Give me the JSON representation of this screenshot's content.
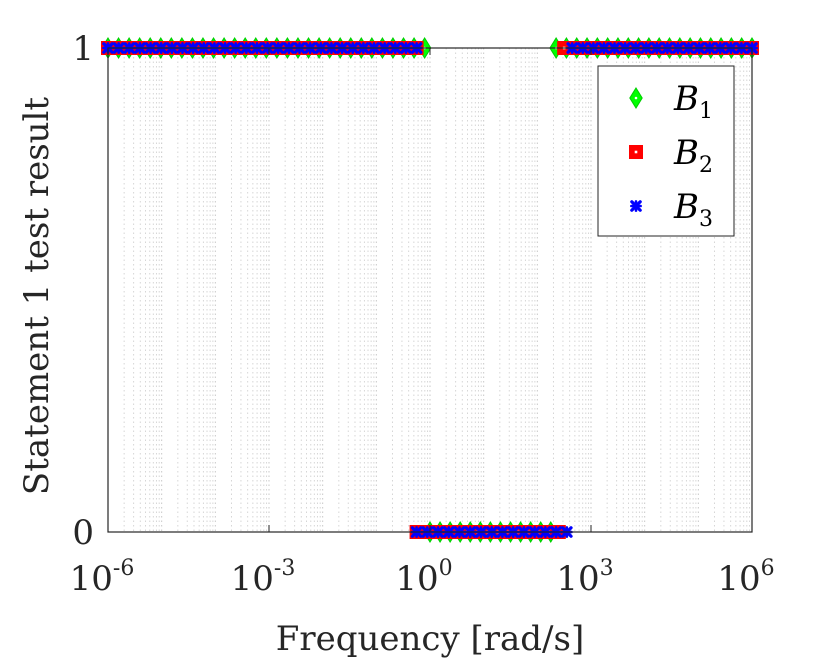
{
  "chart_data": {
    "type": "scatter",
    "xlabel": "Frequency [rad/s]",
    "ylabel": "Statement 1 test result",
    "x_scale": "log",
    "xlim_exponent": [
      -6,
      6
    ],
    "ylim": [
      0,
      1
    ],
    "x_ticks": [
      {
        "base": "10",
        "exp": "-6",
        "value": -6
      },
      {
        "base": "10",
        "exp": "-3",
        "value": -3
      },
      {
        "base": "10",
        "exp": "0",
        "value": 0
      },
      {
        "base": "10",
        "exp": "3",
        "value": 3
      },
      {
        "base": "10",
        "exp": "6",
        "value": 6
      }
    ],
    "y_ticks": [
      {
        "label": "0",
        "value": 0
      },
      {
        "label": "1",
        "value": 1
      }
    ],
    "grid": "x-major-and-minor-dotted",
    "legend_position": "top-right",
    "series": [
      {
        "name": "B",
        "sub": "1",
        "marker": "diamond",
        "color": "#00ff00",
        "edge": "#00cc00",
        "segments": [
          {
            "from_exp": -6,
            "to_exp": -0.1,
            "y": 1
          },
          {
            "from_exp": 0,
            "to_exp": 2.25,
            "y": 0
          },
          {
            "from_exp": 2.35,
            "to_exp": 6,
            "y": 1
          }
        ]
      },
      {
        "name": "B",
        "sub": "2",
        "marker": "square",
        "color": "#ff0000",
        "edge": "#ff0000",
        "segments": [
          {
            "from_exp": -6,
            "to_exp": -0.25,
            "y": 1
          },
          {
            "from_exp": -0.25,
            "to_exp": 2.4,
            "y": 0
          },
          {
            "from_exp": 2.5,
            "to_exp": 6,
            "y": 1
          }
        ]
      },
      {
        "name": "B",
        "sub": "3",
        "marker": "x-star",
        "color": "#0000ff",
        "edge": "#0000ff",
        "segments": [
          {
            "from_exp": -6,
            "to_exp": -0.25,
            "y": 1
          },
          {
            "from_exp": -0.25,
            "to_exp": 2.55,
            "y": 0
          },
          {
            "from_exp": 2.65,
            "to_exp": 6,
            "y": 1
          }
        ]
      }
    ]
  }
}
